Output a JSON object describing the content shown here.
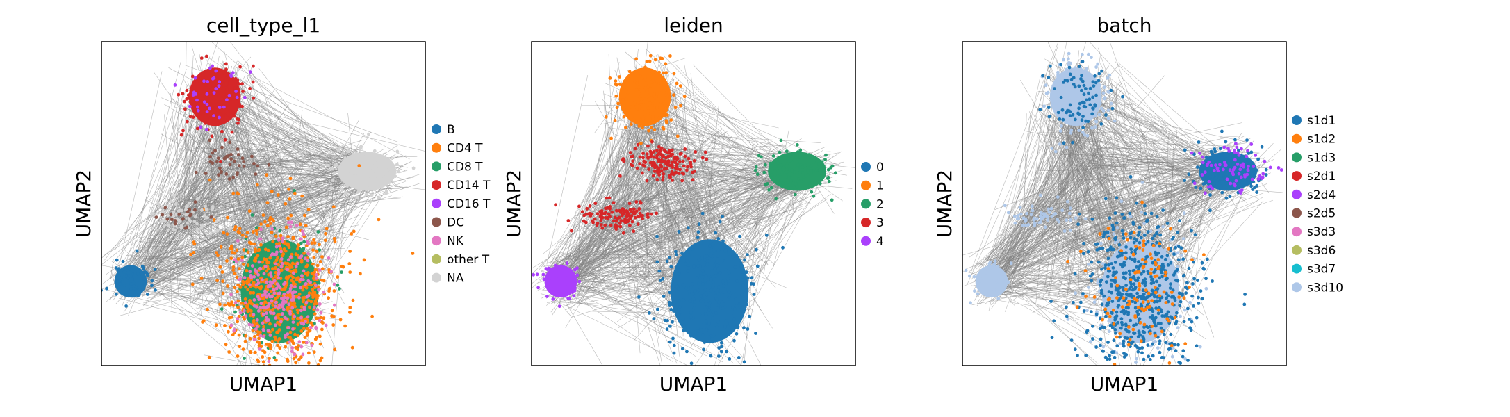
{
  "chart_data": [
    {
      "type": "scatter",
      "title": "cell_type_l1",
      "xlabel": "UMAP1",
      "ylabel": "UMAP2",
      "legend_position": "right",
      "grid": false,
      "categories": [
        {
          "label": "B",
          "color": "#1f77b4"
        },
        {
          "label": "CD4 T",
          "color": "#ff7f0e"
        },
        {
          "label": "CD8 T",
          "color": "#279e68"
        },
        {
          "label": "CD14 T",
          "color": "#d62728"
        },
        {
          "label": "CD16 T",
          "color": "#aa40fc"
        },
        {
          "label": "DC",
          "color": "#8c564b"
        },
        {
          "label": "NK",
          "color": "#e377c2"
        },
        {
          "label": "other T",
          "color": "#b5bd61"
        },
        {
          "label": "NA",
          "color": "#d3d3d3"
        }
      ]
    },
    {
      "type": "scatter",
      "title": "leiden",
      "xlabel": "UMAP1",
      "ylabel": "UMAP2",
      "legend_position": "right",
      "grid": false,
      "categories": [
        {
          "label": "0",
          "color": "#1f77b4"
        },
        {
          "label": "1",
          "color": "#ff7f0e"
        },
        {
          "label": "2",
          "color": "#279e68"
        },
        {
          "label": "3",
          "color": "#d62728"
        },
        {
          "label": "4",
          "color": "#aa40fc"
        }
      ]
    },
    {
      "type": "scatter",
      "title": "batch",
      "xlabel": "UMAP1",
      "ylabel": "UMAP2",
      "legend_position": "right",
      "grid": false,
      "categories": [
        {
          "label": "s1d1",
          "color": "#1f77b4"
        },
        {
          "label": "s1d2",
          "color": "#ff7f0e"
        },
        {
          "label": "s1d3",
          "color": "#279e68"
        },
        {
          "label": "s2d1",
          "color": "#d62728"
        },
        {
          "label": "s2d4",
          "color": "#aa40fc"
        },
        {
          "label": "s2d5",
          "color": "#8c564b"
        },
        {
          "label": "s3d3",
          "color": "#e377c2"
        },
        {
          "label": "s3d6",
          "color": "#b5bd61"
        },
        {
          "label": "s3d7",
          "color": "#17becf"
        },
        {
          "label": "s3d10",
          "color": "#aec7e8"
        }
      ]
    }
  ]
}
